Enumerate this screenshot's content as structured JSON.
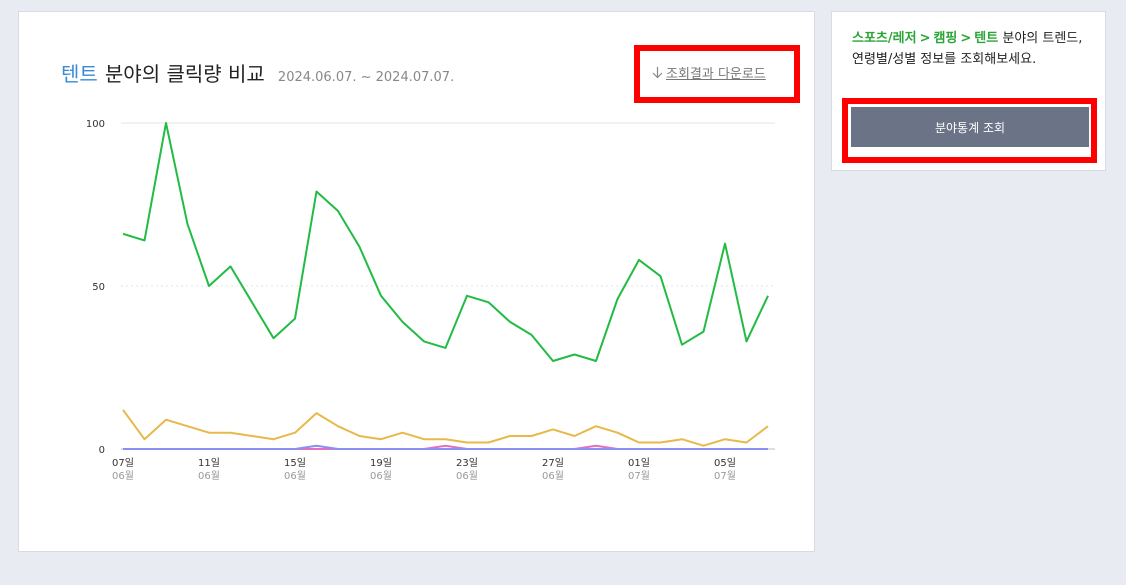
{
  "title": {
    "keyword": "텐트",
    "text": "분야의 클릭량 비교",
    "date_range": "2024.06.07. ~ 2024.07.07."
  },
  "download": {
    "label": "조회결과 다운로드",
    "icon": "download-arrow-icon"
  },
  "side": {
    "breadcrumb": [
      "스포츠/레저",
      "캠핑",
      "텐트"
    ],
    "separator": ">",
    "desc": "분야의 트렌드, 연령별/성별 정보를 조회해보세요.",
    "button_label": "분야통계 조회"
  },
  "colors": {
    "accent_blue": "#3a8ad6",
    "green": "#2aa536",
    "highlight_red": "#ff0000",
    "button_bg": "#6b7487"
  },
  "chart_data": {
    "type": "line",
    "ylim": [
      0,
      100
    ],
    "yticks": [
      0,
      50,
      100
    ],
    "x_tick_labels": [
      {
        "day": "07일",
        "month": "06월"
      },
      {
        "day": "11일",
        "month": "06월"
      },
      {
        "day": "15일",
        "month": "06월"
      },
      {
        "day": "19일",
        "month": "06월"
      },
      {
        "day": "23일",
        "month": "06월"
      },
      {
        "day": "27일",
        "month": "06월"
      },
      {
        "day": "01일",
        "month": "07월"
      },
      {
        "day": "05일",
        "month": "07월"
      }
    ],
    "series": [
      {
        "color": "#22bb44",
        "values": [
          66,
          64,
          100,
          69,
          50,
          56,
          45,
          34,
          40,
          79,
          73,
          62,
          47,
          39,
          33,
          31,
          47,
          45,
          39,
          35,
          27,
          29,
          27,
          46,
          58,
          53,
          32,
          36,
          63,
          33,
          47
        ]
      },
      {
        "color": "#e8b84a",
        "values": [
          12,
          3,
          9,
          7,
          5,
          5,
          4,
          3,
          5,
          11,
          7,
          4,
          3,
          5,
          3,
          3,
          2,
          2,
          4,
          4,
          6,
          4,
          7,
          5,
          2,
          2,
          3,
          1,
          3,
          2,
          7
        ]
      },
      {
        "color": "#8a8ff0",
        "values": [
          0,
          0,
          0,
          0,
          0,
          0,
          0,
          0,
          0,
          1,
          0,
          0,
          0,
          0,
          0,
          0,
          0,
          0,
          0,
          0,
          0,
          0,
          0,
          0,
          0,
          0,
          0,
          0,
          0,
          0,
          0
        ]
      },
      {
        "color": "#e070c0",
        "values": [
          0,
          0,
          0,
          0,
          0,
          0,
          0,
          0,
          0,
          0,
          0,
          0,
          0,
          0,
          0,
          1,
          0,
          0,
          0,
          0,
          0,
          0,
          1,
          0,
          0,
          0,
          0,
          0,
          0,
          0,
          0
        ]
      },
      {
        "color": "#6a8fd0",
        "values": [
          0,
          0,
          0,
          0,
          0,
          0,
          0,
          0,
          0,
          0,
          0,
          0,
          0,
          0,
          0,
          0,
          0,
          0,
          0,
          0,
          0,
          0,
          0,
          0,
          0,
          0,
          0,
          0,
          0,
          0,
          0
        ]
      }
    ]
  }
}
